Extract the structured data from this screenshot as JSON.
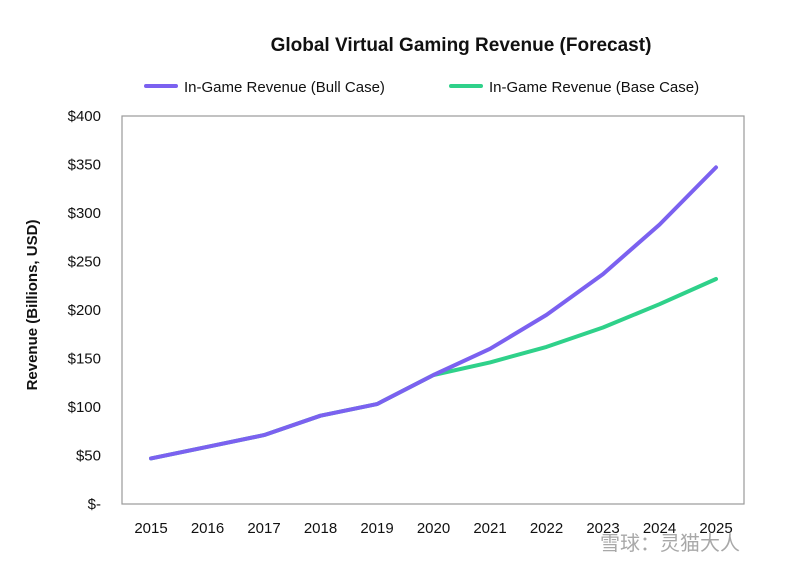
{
  "chart_data": {
    "type": "line",
    "title": "Global Virtual Gaming Revenue (Forecast)",
    "xlabel": "",
    "ylabel": "Revenue (Billions, USD)",
    "x": [
      "2015",
      "2016",
      "2017",
      "2018",
      "2019",
      "2020",
      "2021",
      "2022",
      "2023",
      "2024",
      "2025"
    ],
    "ylim": [
      0,
      400
    ],
    "yticks": [
      0,
      50,
      100,
      150,
      200,
      250,
      300,
      350,
      400
    ],
    "ytick_labels": [
      "$-",
      "$50",
      "$100",
      "$150",
      "$200",
      "$250",
      "$300",
      "$350",
      "$400"
    ],
    "grid": false,
    "legend": "top",
    "series": [
      {
        "name": "In-Game Revenue (Bull Case)",
        "color": "#7b61f0",
        "values": [
          47,
          59,
          71,
          91,
          103,
          133,
          160,
          195,
          237,
          288,
          347
        ]
      },
      {
        "name": "In-Game Revenue (Base Case)",
        "color": "#2fd18a",
        "values": [
          47,
          59,
          71,
          91,
          103,
          133,
          146,
          162,
          182,
          206,
          232
        ]
      }
    ]
  },
  "watermark": {
    "text": "雪球：灵猫大人"
  }
}
